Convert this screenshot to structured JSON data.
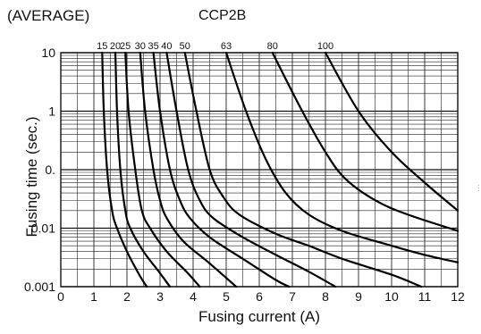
{
  "header": {
    "left_text": "(AVERAGE)"
  },
  "side_note": "…",
  "chart_data": {
    "type": "line",
    "title": "CCP2B",
    "xlabel": "Fusing current (A)",
    "ylabel": "Fusing time (sec.)",
    "xlim": [
      0,
      12
    ],
    "ylim": [
      0.001,
      10
    ],
    "yscale": "log",
    "grid": true,
    "x_ticks": [
      "0",
      "1",
      "2",
      "3",
      "4",
      "5",
      "6",
      "7",
      "8",
      "9",
      "10",
      "11",
      "12"
    ],
    "y_ticks": [
      {
        "value": 10,
        "label": "10"
      },
      {
        "value": 1,
        "label": "1"
      },
      {
        "value": 0.1,
        "label": "0."
      },
      {
        "value": 0.01,
        "label": "0.01"
      },
      {
        "value": 0.001,
        "label": "0.001"
      }
    ],
    "series": [
      {
        "name": "15",
        "points": [
          [
            1.25,
            10
          ],
          [
            1.3,
            1
          ],
          [
            1.4,
            0.1
          ],
          [
            1.55,
            0.02
          ],
          [
            1.7,
            0.01
          ],
          [
            2.0,
            0.004
          ],
          [
            2.4,
            0.0015
          ],
          [
            2.6,
            0.001
          ]
        ]
      },
      {
        "name": "20",
        "points": [
          [
            1.65,
            10
          ],
          [
            1.7,
            1
          ],
          [
            1.8,
            0.1
          ],
          [
            1.95,
            0.02
          ],
          [
            2.1,
            0.01
          ],
          [
            2.5,
            0.004
          ],
          [
            3.0,
            0.0017
          ],
          [
            3.3,
            0.001
          ]
        ]
      },
      {
        "name": "25",
        "points": [
          [
            1.95,
            10
          ],
          [
            2.05,
            1
          ],
          [
            2.25,
            0.1
          ],
          [
            2.45,
            0.02
          ],
          [
            2.7,
            0.01
          ],
          [
            3.2,
            0.004
          ],
          [
            3.8,
            0.0018
          ],
          [
            4.2,
            0.001
          ]
        ]
      },
      {
        "name": "30",
        "points": [
          [
            2.4,
            10
          ],
          [
            2.55,
            1
          ],
          [
            2.8,
            0.1
          ],
          [
            3.0,
            0.03
          ],
          [
            3.2,
            0.015
          ],
          [
            3.7,
            0.006
          ],
          [
            4.5,
            0.0025
          ],
          [
            5.3,
            0.001
          ]
        ]
      },
      {
        "name": "35",
        "points": [
          [
            2.8,
            10
          ],
          [
            3.0,
            1
          ],
          [
            3.3,
            0.1
          ],
          [
            3.6,
            0.03
          ],
          [
            3.9,
            0.015
          ],
          [
            4.5,
            0.007
          ],
          [
            5.5,
            0.003
          ],
          [
            6.5,
            0.0013
          ],
          [
            6.9,
            0.001
          ]
        ]
      },
      {
        "name": "40",
        "points": [
          [
            3.2,
            10
          ],
          [
            3.5,
            1
          ],
          [
            3.85,
            0.1
          ],
          [
            4.2,
            0.03
          ],
          [
            4.6,
            0.015
          ],
          [
            5.5,
            0.007
          ],
          [
            6.5,
            0.0035
          ],
          [
            7.5,
            0.0018
          ],
          [
            8.3,
            0.001
          ]
        ]
      },
      {
        "name": "50",
        "points": [
          [
            3.75,
            10
          ],
          [
            4.1,
            1
          ],
          [
            4.5,
            0.1
          ],
          [
            4.9,
            0.035
          ],
          [
            5.4,
            0.017
          ],
          [
            6.5,
            0.008
          ],
          [
            7.5,
            0.005
          ],
          [
            8.5,
            0.003
          ],
          [
            10,
            0.0016
          ],
          [
            10.9,
            0.001
          ]
        ]
      },
      {
        "name": "63",
        "points": [
          [
            5.0,
            10
          ],
          [
            5.6,
            1
          ],
          [
            6.2,
            0.15
          ],
          [
            6.8,
            0.04
          ],
          [
            7.5,
            0.017
          ],
          [
            8.5,
            0.009
          ],
          [
            10,
            0.005
          ],
          [
            11,
            0.0035
          ],
          [
            12,
            0.0026
          ]
        ]
      },
      {
        "name": "80",
        "points": [
          [
            6.4,
            10
          ],
          [
            7.3,
            1
          ],
          [
            8.0,
            0.2
          ],
          [
            8.6,
            0.07
          ],
          [
            9.5,
            0.03
          ],
          [
            10.5,
            0.017
          ],
          [
            12,
            0.009
          ]
        ]
      },
      {
        "name": "100",
        "points": [
          [
            8.0,
            10
          ],
          [
            9.0,
            1
          ],
          [
            10,
            0.2
          ],
          [
            11,
            0.06
          ],
          [
            12,
            0.02
          ]
        ]
      }
    ]
  }
}
